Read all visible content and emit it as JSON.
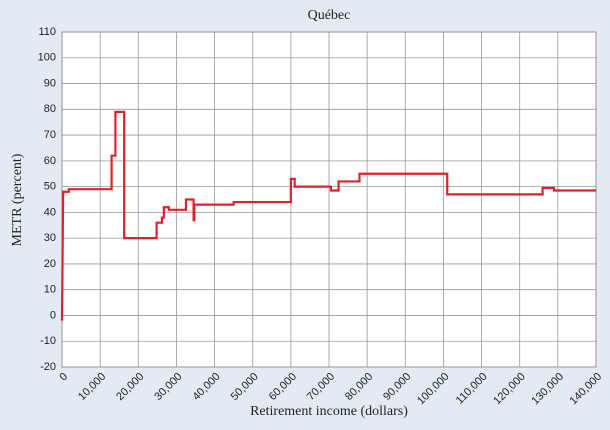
{
  "chart_data": {
    "type": "line",
    "title": "Québec",
    "x_label": "Retirement income (dollars)",
    "y_label": "METR (percent)",
    "x": [
      0,
      300,
      1800,
      1800,
      13000,
      13000,
      14000,
      14000,
      16300,
      16300,
      24800,
      24800,
      26200,
      26200,
      26700,
      26700,
      28000,
      28000,
      32500,
      32500,
      34500,
      34500,
      34700,
      34700,
      45000,
      45000,
      60000,
      60000,
      61000,
      61000,
      70500,
      70500,
      72500,
      72500,
      78000,
      78000,
      101000,
      101000,
      126000,
      126000,
      129000,
      129000,
      140000
    ],
    "series": [
      {
        "name": "Québec",
        "color": "#e3202a",
        "values": [
          -2,
          48,
          48,
          49,
          49,
          62,
          62,
          79,
          79,
          30,
          30,
          36,
          36,
          38,
          38,
          42,
          42,
          41,
          41,
          45,
          45,
          37,
          37,
          43,
          43,
          44,
          44,
          53,
          53,
          50,
          50,
          48.5,
          48.5,
          52,
          52,
          55,
          55,
          47,
          47,
          49.5,
          49.5,
          48.5,
          48.5
        ]
      }
    ],
    "xlim": [
      0,
      140000
    ],
    "xticks": [
      0,
      {
        "value": 10000,
        "label": "10,000"
      },
      {
        "value": 20000,
        "label": "20,000"
      },
      {
        "value": 30000,
        "label": "30,000"
      },
      {
        "value": 40000,
        "label": "40,000"
      },
      {
        "value": 50000,
        "label": "50,000"
      },
      {
        "value": 60000,
        "label": "60,000"
      },
      {
        "value": 70000,
        "label": "70,000"
      },
      {
        "value": 80000,
        "label": "80,000"
      },
      {
        "value": 90000,
        "label": "90,000"
      },
      {
        "value": 100000,
        "label": "100,000"
      },
      {
        "value": 110000,
        "label": "110,000"
      },
      {
        "value": 120000,
        "label": "120,000"
      },
      {
        "value": 130000,
        "label": "130,000"
      },
      {
        "value": 140000,
        "label": "140,000"
      }
    ],
    "ylim": [
      -20,
      110
    ],
    "yticks": [
      -20,
      -10,
      0,
      10,
      20,
      30,
      40,
      50,
      60,
      70,
      80,
      90,
      100,
      110
    ],
    "grid": true
  }
}
